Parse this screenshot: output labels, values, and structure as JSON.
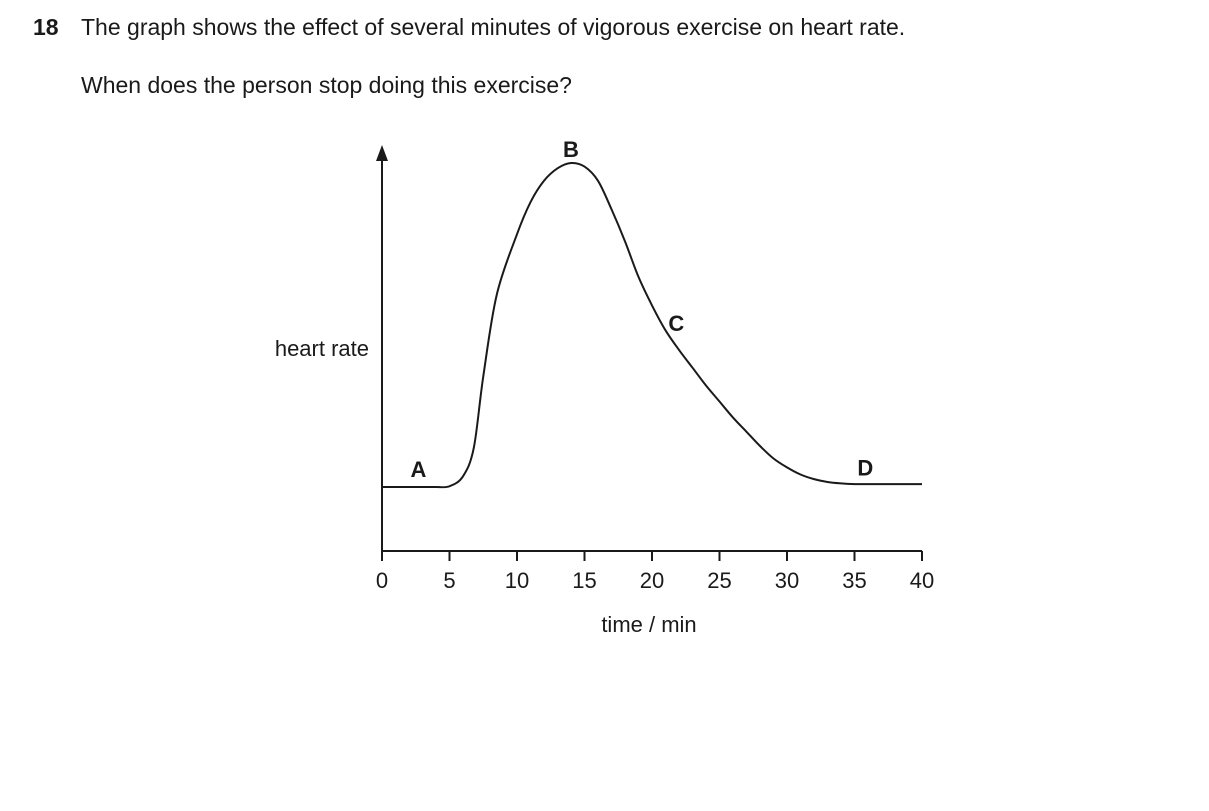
{
  "question": {
    "number": "18",
    "text": "The graph shows the effect of several minutes of vigorous exercise on heart rate.",
    "prompt": "When does the person stop doing this exercise?"
  },
  "chart_data": {
    "type": "line",
    "title": "",
    "xlabel": "time / min",
    "ylabel": "heart rate",
    "xlim": [
      0,
      40
    ],
    "x_ticks": [
      0,
      5,
      10,
      15,
      20,
      25,
      30,
      35,
      40
    ],
    "y_ticks": [],
    "ylim": [
      0,
      100
    ],
    "grid": false,
    "series": [
      {
        "points": [
          [
            0,
            9
          ],
          [
            1,
            9
          ],
          [
            2,
            9
          ],
          [
            3,
            9
          ],
          [
            4,
            9
          ],
          [
            5,
            9.2
          ],
          [
            6,
            12
          ],
          [
            6.8,
            20
          ],
          [
            7.5,
            40
          ],
          [
            8.5,
            63
          ],
          [
            10,
            80
          ],
          [
            11,
            89
          ],
          [
            12,
            95
          ],
          [
            13,
            98.5
          ],
          [
            14,
            100
          ],
          [
            15,
            99
          ],
          [
            16,
            95
          ],
          [
            17,
            87
          ],
          [
            18,
            78
          ],
          [
            19,
            68
          ],
          [
            20,
            60
          ],
          [
            21,
            53
          ],
          [
            22,
            47.5
          ],
          [
            23,
            42.5
          ],
          [
            24,
            37.5
          ],
          [
            25,
            33
          ],
          [
            26,
            28.5
          ],
          [
            27,
            24.5
          ],
          [
            28,
            20.5
          ],
          [
            29,
            17
          ],
          [
            30,
            14.5
          ],
          [
            31,
            12.5
          ],
          [
            32,
            11.2
          ],
          [
            33,
            10.4
          ],
          [
            34,
            10
          ],
          [
            35,
            9.8
          ],
          [
            36,
            9.8
          ],
          [
            37,
            9.8
          ],
          [
            38,
            9.8
          ],
          [
            39,
            9.8
          ],
          [
            40,
            9.8
          ]
        ]
      }
    ],
    "annotations": [
      {
        "text": "A",
        "x": 2.7,
        "y": 14
      },
      {
        "text": "B",
        "x": 14,
        "y": 104
      },
      {
        "text": "C",
        "x": 21.8,
        "y": 55
      },
      {
        "text": "D",
        "x": 35.8,
        "y": 14.5
      }
    ]
  }
}
